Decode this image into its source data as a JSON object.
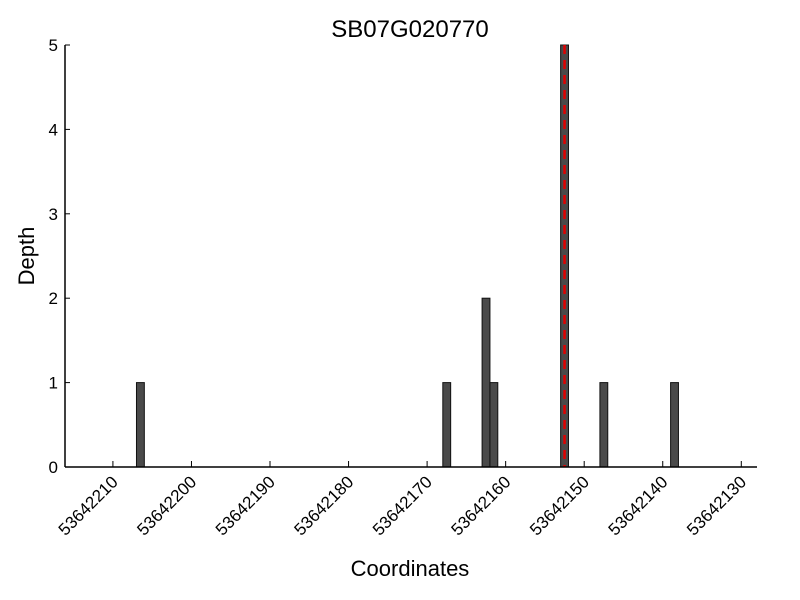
{
  "chart_data": {
    "type": "bar",
    "title": "SB07G020770",
    "xlabel": "Coordinates",
    "ylabel": "Depth",
    "xlim": [
      53642216.1,
      53642128.0
    ],
    "x_reversed": true,
    "ylim": [
      0,
      5
    ],
    "xticks": [
      53642210,
      53642200,
      53642190,
      53642180,
      53642170,
      53642160,
      53642150,
      53642140,
      53642130
    ],
    "yticks": [
      0,
      1,
      2,
      3,
      4,
      5
    ],
    "bars": [
      {
        "x": 53642206,
        "value": 1
      },
      {
        "x": 53642167,
        "value": 1
      },
      {
        "x": 53642162,
        "value": 2
      },
      {
        "x": 53642161,
        "value": 1
      },
      {
        "x": 53642152,
        "value": 5
      },
      {
        "x": 53642147,
        "value": 1
      },
      {
        "x": 53642138,
        "value": 1
      }
    ],
    "marker_line": {
      "x": 53642152.5,
      "style": "dashed",
      "color": "#e00000"
    },
    "bar_color": "#4a4a4a",
    "grid": false
  }
}
